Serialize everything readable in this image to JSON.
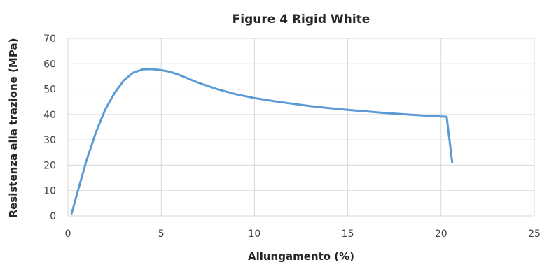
{
  "chart_data": {
    "type": "line",
    "title": "Figure 4 Rigid White",
    "xlabel": "Allungamento (%)",
    "ylabel": "Resistenza alla trazione (MPa)",
    "xlim": [
      0,
      25
    ],
    "ylim": [
      0,
      70
    ],
    "xticks": [
      0,
      5,
      10,
      15,
      20,
      25
    ],
    "yticks": [
      0,
      10,
      20,
      30,
      40,
      50,
      60,
      70
    ],
    "grid": "vertical and horizontal",
    "legend": "none",
    "colors": {
      "series": "#5b9bd5",
      "grid": "#d9d9d9",
      "text": "#404040"
    },
    "series": [
      {
        "values": [
          [
            0.2,
            1
          ],
          [
            0.5,
            9
          ],
          [
            1.0,
            22
          ],
          [
            1.5,
            33
          ],
          [
            2.0,
            42
          ],
          [
            2.5,
            48.5
          ],
          [
            3.0,
            53.5
          ],
          [
            3.5,
            56.5
          ],
          [
            4.0,
            57.8
          ],
          [
            4.5,
            57.9
          ],
          [
            5.0,
            57.5
          ],
          [
            5.5,
            56.8
          ],
          [
            6.0,
            55.5
          ],
          [
            7.0,
            52.5
          ],
          [
            8.0,
            50.0
          ],
          [
            9.0,
            48.0
          ],
          [
            10.0,
            46.5
          ],
          [
            11.0,
            45.3
          ],
          [
            12.0,
            44.3
          ],
          [
            13.0,
            43.3
          ],
          [
            14.0,
            42.5
          ],
          [
            15.0,
            41.8
          ],
          [
            16.0,
            41.2
          ],
          [
            17.0,
            40.6
          ],
          [
            18.0,
            40.1
          ],
          [
            19.0,
            39.6
          ],
          [
            20.0,
            39.2
          ],
          [
            20.3,
            39.1
          ],
          [
            20.6,
            21
          ]
        ]
      }
    ]
  }
}
